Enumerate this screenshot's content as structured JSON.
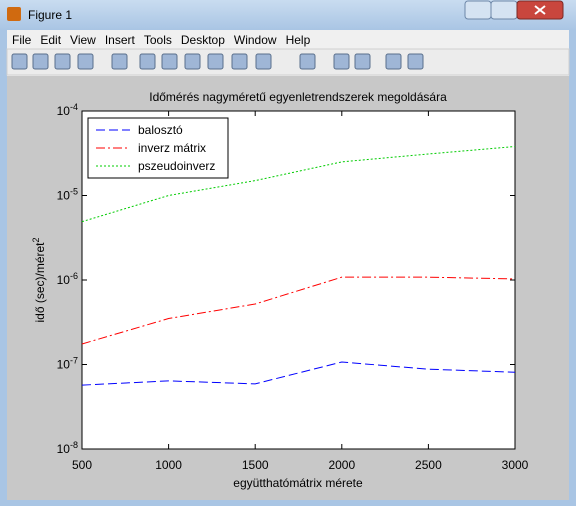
{
  "window": {
    "title": "Figure 1",
    "menu": [
      "File",
      "Edit",
      "View",
      "Insert",
      "Tools",
      "Desktop",
      "Window",
      "Help"
    ]
  },
  "chart_data": {
    "type": "line",
    "title": "Időmérés nagyméretű egyenletrendszerek megoldására",
    "x_label": "együtthatómátrix mérete",
    "y_label": "idő (sec)/méret2",
    "x": [
      500,
      1000,
      1500,
      2000,
      2500,
      3000
    ],
    "series": [
      {
        "name": "balosztó",
        "color": "#0000ff",
        "dash": "--",
        "values": [
          5.7e-08,
          6.4e-08,
          5.9e-08,
          1.07e-07,
          8.8e-08,
          8.1e-08
        ]
      },
      {
        "name": "inverz mátrix",
        "color": "#ff0000",
        "dash": "-.",
        "values": [
          1.75e-07,
          3.5e-07,
          5.2e-07,
          1.08e-06,
          1.08e-06,
          1.03e-06
        ]
      },
      {
        "name": "pszeudoinverz",
        "color": "#00cc00",
        "dash": ":",
        "values": [
          4.9e-06,
          1e-05,
          1.5e-05,
          2.5e-05,
          3.1e-05,
          3.8e-05
        ]
      }
    ],
    "xlim": [
      500,
      3000
    ],
    "xticks": [
      500,
      1000,
      1500,
      2000,
      2500,
      3000
    ],
    "ylim": [
      1e-08,
      0.0001
    ],
    "y_scale": "log",
    "yticks": [
      {
        "value": 1e-08,
        "label": "10-8"
      },
      {
        "value": 1e-07,
        "label": "10-7"
      },
      {
        "value": 1e-06,
        "label": "10-6"
      },
      {
        "value": 1e-05,
        "label": "10-5"
      },
      {
        "value": 0.0001,
        "label": "10-4"
      }
    ],
    "legend": "northwest",
    "grid": false
  }
}
